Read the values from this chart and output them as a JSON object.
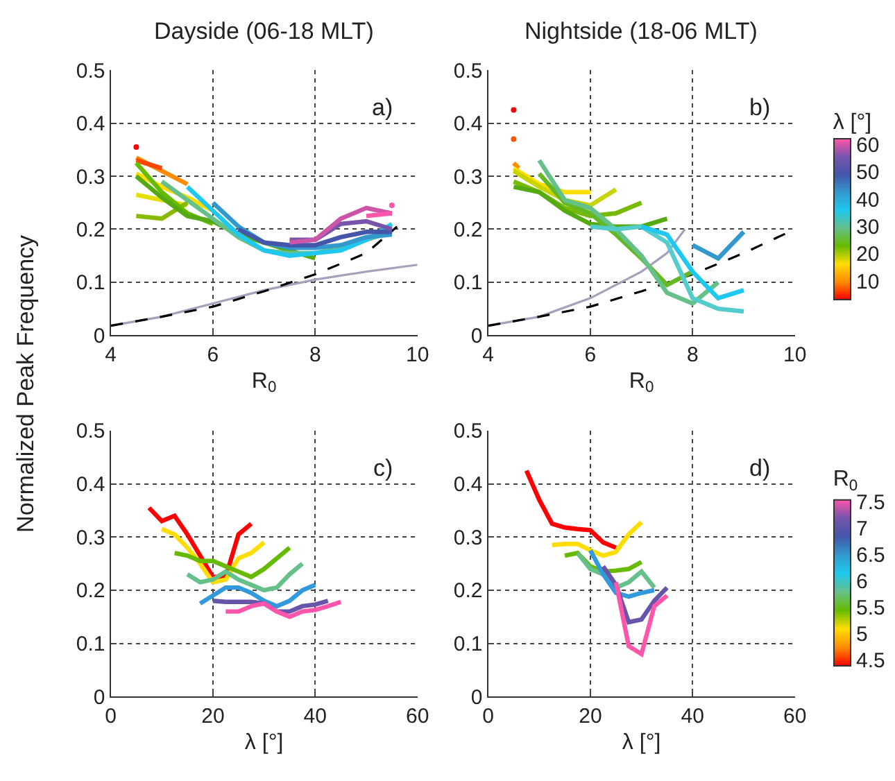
{
  "chart_data": [
    {
      "type": "line",
      "title": "Dayside (06-18 MLT)",
      "xlabel": "R$_{0}$",
      "ylabel": "Normalized Peak Frequency",
      "xlim": [
        4,
        10
      ],
      "ylim": [
        0,
        0.5
      ],
      "xticks": [
        4,
        6,
        8,
        10
      ],
      "yticks": [
        0,
        0.1,
        0.2,
        0.3,
        0.4,
        0.5
      ],
      "grid": true,
      "annotations": [
        "a)"
      ],
      "series": [
        {
          "color": "#a89fbb",
          "x": [
            4,
            5,
            6,
            7,
            8,
            9,
            10
          ],
          "values": [
            0.018,
            0.035,
            0.06,
            0.085,
            0.105,
            0.12,
            0.133
          ]
        },
        {
          "color": "#000000",
          "line_style": "dashed",
          "x": [
            4,
            5,
            6,
            7,
            8,
            9,
            9.6
          ],
          "values": [
            0.018,
            0.035,
            0.054,
            0.083,
            0.115,
            0.155,
            0.205
          ]
        },
        {
          "color": "#ff8c00",
          "x": [
            4.5,
            5,
            5.5
          ],
          "values": [
            0.335,
            0.31,
            0.285
          ]
        },
        {
          "color": "#ff4500",
          "x": [
            4.5,
            5
          ],
          "values": [
            0.33,
            0.315
          ]
        },
        {
          "color": "#ffdd00",
          "x": [
            4.5,
            5,
            5.5,
            6
          ],
          "values": [
            0.305,
            0.28,
            0.26,
            0.235
          ]
        },
        {
          "color": "#e6e000",
          "x": [
            4.5,
            5,
            5.5
          ],
          "values": [
            0.265,
            0.255,
            0.245
          ]
        },
        {
          "color": "#88bb00",
          "x": [
            4.5,
            5,
            5.5
          ],
          "values": [
            0.225,
            0.22,
            0.25
          ]
        },
        {
          "color": "#66bb00",
          "x": [
            4.5,
            5,
            5.5,
            6
          ],
          "values": [
            0.325,
            0.27,
            0.23,
            0.21
          ]
        },
        {
          "color": "#55aa11",
          "x": [
            4.5,
            5,
            5.5,
            6,
            6.5,
            7,
            7.5,
            8
          ],
          "values": [
            0.3,
            0.26,
            0.225,
            0.215,
            0.19,
            0.175,
            0.16,
            0.145
          ]
        },
        {
          "color": "#66c08a",
          "x": [
            5,
            5.5,
            6,
            6.5,
            7,
            7.5,
            8,
            8.5,
            9,
            9.5
          ],
          "values": [
            0.29,
            0.255,
            0.22,
            0.185,
            0.16,
            0.155,
            0.155,
            0.165,
            0.18,
            0.195
          ]
        },
        {
          "color": "#1ec8ee",
          "x": [
            5.5,
            6,
            6.5,
            7,
            7.5,
            8,
            8.5,
            9,
            9.5
          ],
          "values": [
            0.28,
            0.235,
            0.19,
            0.16,
            0.15,
            0.155,
            0.16,
            0.18,
            0.21
          ]
        },
        {
          "color": "#3399cc",
          "x": [
            6,
            6.5,
            7,
            7.5,
            8,
            8.5,
            9,
            9.5
          ],
          "values": [
            0.25,
            0.205,
            0.175,
            0.165,
            0.165,
            0.17,
            0.185,
            0.19
          ]
        },
        {
          "color": "#4455aa",
          "x": [
            6.5,
            7,
            7.5,
            8,
            8.5,
            9,
            9.5
          ],
          "values": [
            0.2,
            0.175,
            0.17,
            0.17,
            0.185,
            0.195,
            0.195
          ]
        },
        {
          "color": "#7755aa",
          "x": [
            7.5,
            8,
            8.5,
            9,
            9.5
          ],
          "values": [
            0.18,
            0.18,
            0.21,
            0.215,
            0.2
          ]
        },
        {
          "color": "#cc55aa",
          "x": [
            7.5,
            8,
            8.5,
            9,
            9.5
          ],
          "values": [
            0.175,
            0.18,
            0.22,
            0.24,
            0.23
          ]
        },
        {
          "color": "#ff55aa",
          "x": [
            9,
            9.5
          ],
          "values": [
            0.225,
            0.23
          ]
        },
        {
          "type": "scatter",
          "marker": "circle",
          "color": "#ff0000",
          "x": [
            4.5
          ],
          "values": [
            0.355
          ]
        },
        {
          "type": "scatter",
          "marker": "circle",
          "color": "#ff55aa",
          "x": [
            9.5
          ],
          "values": [
            0.245
          ]
        }
      ]
    },
    {
      "type": "line",
      "title": "Nightside (18-06 MLT)",
      "xlabel": "R$_{0}$",
      "xlim": [
        4,
        10
      ],
      "ylim": [
        0,
        0.5
      ],
      "xticks": [
        4,
        6,
        8,
        10
      ],
      "yticks": [
        0,
        0.1,
        0.2,
        0.3,
        0.4,
        0.5
      ],
      "grid": true,
      "annotations": [
        "b)"
      ],
      "clabel": "λ [°]",
      "clim": [
        3,
        62
      ],
      "cticks": [
        10,
        20,
        30,
        40,
        50,
        60
      ],
      "series": [
        {
          "color": "#a89fbb",
          "x": [
            4,
            5,
            6,
            7,
            7.5,
            7.85
          ],
          "values": [
            0.018,
            0.035,
            0.07,
            0.12,
            0.155,
            0.2
          ]
        },
        {
          "color": "#000000",
          "line_style": "dashed",
          "x": [
            4,
            5,
            6,
            7,
            8,
            9,
            10
          ],
          "values": [
            0.018,
            0.035,
            0.054,
            0.083,
            0.115,
            0.155,
            0.2
          ]
        },
        {
          "color": "#ff8c00",
          "x": [
            4.5,
            4.6
          ],
          "values": [
            0.325,
            0.315
          ]
        },
        {
          "color": "#ffdd00",
          "x": [
            4.5,
            5,
            5.5,
            6
          ],
          "values": [
            0.315,
            0.285,
            0.27,
            0.27
          ]
        },
        {
          "color": "#c8d400",
          "x": [
            4.5,
            5,
            5.5,
            6,
            6.5
          ],
          "values": [
            0.31,
            0.28,
            0.255,
            0.245,
            0.275
          ]
        },
        {
          "color": "#77bb00",
          "x": [
            4.5,
            5,
            5.5,
            6,
            6.5,
            7
          ],
          "values": [
            0.29,
            0.27,
            0.24,
            0.225,
            0.23,
            0.25
          ]
        },
        {
          "color": "#55aa11",
          "x": [
            4.5,
            5,
            5.5,
            6,
            6.5,
            7,
            7.5
          ],
          "values": [
            0.28,
            0.27,
            0.235,
            0.21,
            0.205,
            0.205,
            0.22
          ]
        },
        {
          "color": "#66b822",
          "x": [
            5,
            5.5,
            6,
            6.5,
            7,
            7.5,
            8
          ],
          "values": [
            0.305,
            0.25,
            0.23,
            0.19,
            0.145,
            0.095,
            0.12
          ]
        },
        {
          "color": "#66c08a",
          "x": [
            5,
            5.5,
            6,
            6.5,
            7,
            7.5,
            8,
            8.5
          ],
          "values": [
            0.33,
            0.255,
            0.24,
            0.2,
            0.15,
            0.08,
            0.06,
            0.1
          ]
        },
        {
          "color": "#55cccc",
          "x": [
            6,
            6.5,
            7,
            7.5,
            8,
            8.5,
            9
          ],
          "values": [
            0.205,
            0.2,
            0.205,
            0.175,
            0.07,
            0.05,
            0.045
          ]
        },
        {
          "color": "#1ec8ee",
          "x": [
            7,
            7.5,
            8,
            8.5,
            9
          ],
          "values": [
            0.205,
            0.19,
            0.12,
            0.07,
            0.085
          ]
        },
        {
          "color": "#3399cc",
          "x": [
            8,
            8.5,
            9
          ],
          "values": [
            0.17,
            0.145,
            0.195
          ]
        },
        {
          "type": "scatter",
          "marker": "circle",
          "color": "#ff0000",
          "x": [
            4.5
          ],
          "values": [
            0.425
          ]
        },
        {
          "type": "scatter",
          "marker": "circle",
          "color": "#ff5500",
          "x": [
            4.5
          ],
          "values": [
            0.37
          ]
        }
      ]
    },
    {
      "type": "line",
      "xlabel": "λ [°]",
      "xlim": [
        0,
        60
      ],
      "ylim": [
        0,
        0.5
      ],
      "xticks": [
        0,
        20,
        40,
        60
      ],
      "yticks": [
        0,
        0.1,
        0.2,
        0.3,
        0.4,
        0.5
      ],
      "grid": true,
      "annotations": [
        "c)"
      ],
      "series": [
        {
          "color": "#ff0000",
          "x": [
            7.5,
            10,
            12.5,
            15,
            17.5,
            20,
            22.5,
            25,
            27.5
          ],
          "values": [
            0.355,
            0.33,
            0.34,
            0.305,
            0.265,
            0.225,
            0.225,
            0.305,
            0.325
          ]
        },
        {
          "color": "#ffdd00",
          "x": [
            10,
            12.5,
            15,
            17.5,
            20,
            22.5,
            25,
            27.5,
            30
          ],
          "values": [
            0.315,
            0.305,
            0.28,
            0.25,
            0.215,
            0.22,
            0.26,
            0.27,
            0.29
          ]
        },
        {
          "color": "#66bb00",
          "x": [
            12.5,
            15,
            17.5,
            20,
            22.5,
            25,
            27.5,
            30,
            32.5,
            35
          ],
          "values": [
            0.27,
            0.265,
            0.255,
            0.255,
            0.245,
            0.235,
            0.225,
            0.24,
            0.26,
            0.28
          ]
        },
        {
          "color": "#66c08a",
          "x": [
            15,
            17.5,
            20,
            22.5,
            25,
            27.5,
            30,
            32.5,
            35,
            37.5
          ],
          "values": [
            0.23,
            0.215,
            0.22,
            0.235,
            0.22,
            0.21,
            0.2,
            0.205,
            0.23,
            0.25
          ]
        },
        {
          "color": "#3399dd",
          "x": [
            17.5,
            20,
            22.5,
            25,
            27.5,
            30,
            32.5,
            35,
            37.5,
            40
          ],
          "values": [
            0.175,
            0.19,
            0.205,
            0.205,
            0.195,
            0.18,
            0.17,
            0.18,
            0.2,
            0.21
          ]
        },
        {
          "color": "#6655aa",
          "x": [
            20,
            22.5,
            25,
            27.5,
            30,
            32.5,
            35,
            37.5,
            40,
            42.5
          ],
          "values": [
            0.18,
            0.178,
            0.178,
            0.178,
            0.175,
            0.16,
            0.16,
            0.17,
            0.173,
            0.18
          ]
        },
        {
          "color": "#ff55aa",
          "x": [
            22.5,
            25,
            27.5,
            30,
            32.5,
            35,
            37.5,
            40,
            42.5,
            45
          ],
          "values": [
            0.16,
            0.16,
            0.17,
            0.175,
            0.16,
            0.15,
            0.16,
            0.163,
            0.17,
            0.178
          ]
        }
      ]
    },
    {
      "type": "line",
      "xlabel": "λ [°]",
      "xlim": [
        0,
        60
      ],
      "ylim": [
        0,
        0.5
      ],
      "xticks": [
        0,
        20,
        40,
        60
      ],
      "yticks": [
        0,
        0.1,
        0.2,
        0.3,
        0.4,
        0.5
      ],
      "grid": true,
      "annotations": [
        "d)"
      ],
      "clabel": "R$_{0}$",
      "clim": [
        4.4,
        7.55
      ],
      "cticks": [
        4.5,
        5,
        5.5,
        6,
        6.5,
        7,
        7.5
      ],
      "series": [
        {
          "color": "#ff0000",
          "x": [
            7.5,
            10,
            12.5,
            15,
            17.5,
            20,
            22.5,
            25
          ],
          "values": [
            0.425,
            0.37,
            0.325,
            0.318,
            0.315,
            0.313,
            0.29,
            0.28
          ]
        },
        {
          "color": "#ffdd00",
          "x": [
            12.5,
            15,
            17.5,
            20,
            22.5,
            25,
            27.5,
            30
          ],
          "values": [
            0.285,
            0.287,
            0.287,
            0.275,
            0.265,
            0.272,
            0.305,
            0.328
          ]
        },
        {
          "color": "#66bb00",
          "x": [
            15,
            17.5,
            20,
            22.5,
            25,
            27.5,
            30
          ],
          "values": [
            0.265,
            0.27,
            0.245,
            0.235,
            0.237,
            0.24,
            0.253
          ]
        },
        {
          "color": "#66c08a",
          "x": [
            17.5,
            20,
            22.5,
            25,
            27.5,
            30,
            32.5
          ],
          "values": [
            0.27,
            0.24,
            0.23,
            0.205,
            0.215,
            0.235,
            0.205
          ]
        },
        {
          "color": "#3399dd",
          "x": [
            20,
            22.5,
            25,
            27.5,
            30,
            32.5
          ],
          "values": [
            0.275,
            0.23,
            0.195,
            0.188,
            0.195,
            0.2
          ]
        },
        {
          "color": "#6655aa",
          "x": [
            22.5,
            25,
            27.5,
            30,
            32.5,
            35
          ],
          "values": [
            0.245,
            0.21,
            0.14,
            0.145,
            0.18,
            0.205
          ]
        },
        {
          "color": "#ff55aa",
          "x": [
            25,
            27.5,
            30,
            32.5,
            35
          ],
          "values": [
            0.215,
            0.095,
            0.08,
            0.17,
            0.19
          ]
        }
      ]
    }
  ]
}
